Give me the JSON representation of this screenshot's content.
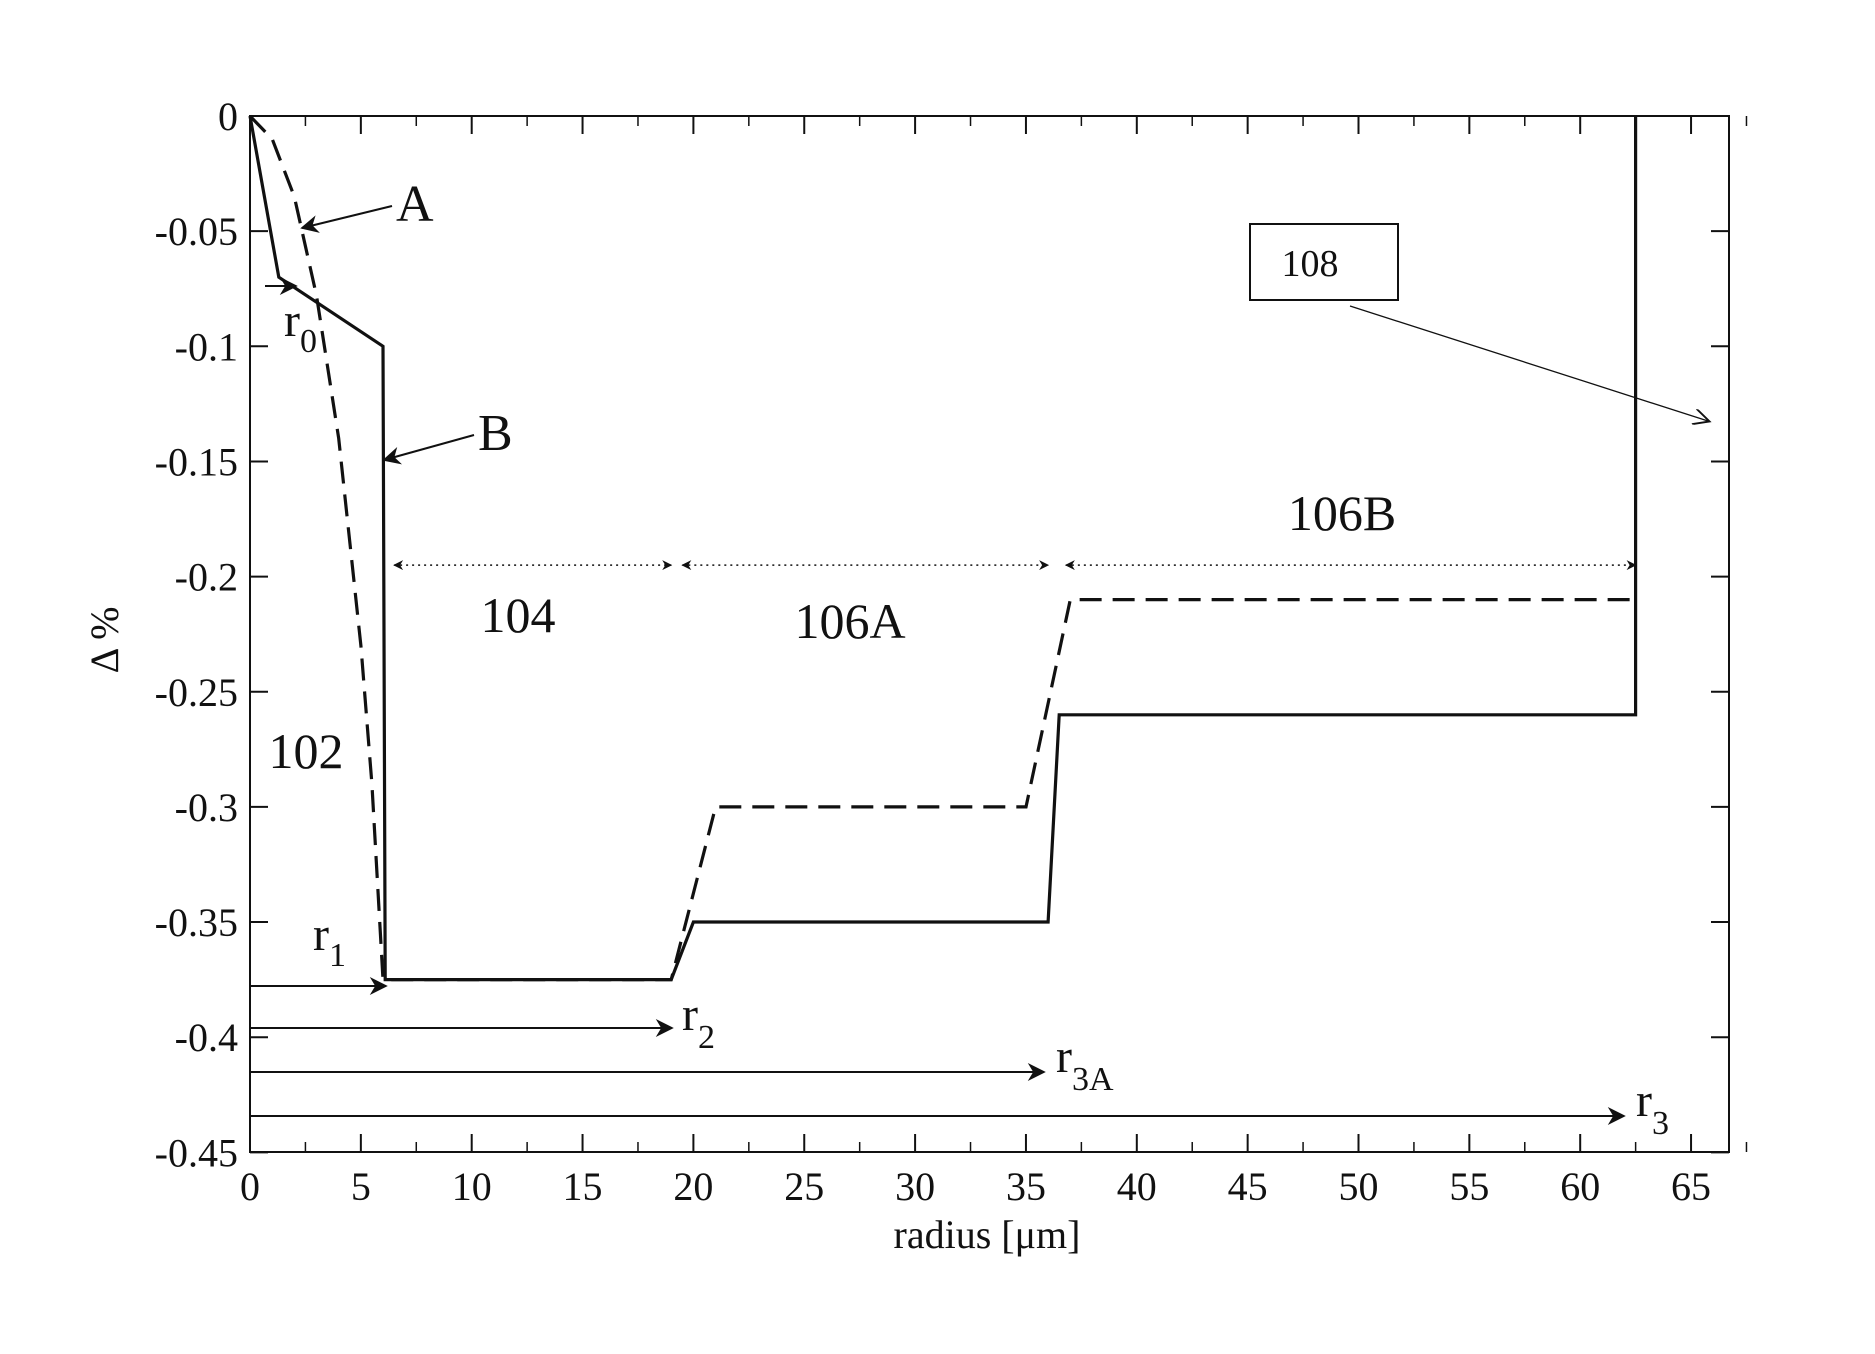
{
  "chart_data": {
    "type": "line",
    "xlabel": "radius [μm]",
    "ylabel": "Δ %",
    "xlim": [
      0,
      68
    ],
    "ylim": [
      -0.45,
      0
    ],
    "xticks": [
      "0",
      "5",
      "10",
      "15",
      "20",
      "25",
      "30",
      "35",
      "40",
      "45",
      "50",
      "55",
      "60",
      "65"
    ],
    "yticks": [
      "0",
      "-0.05",
      "-0.1",
      "-0.15",
      "-0.2",
      "-0.25",
      "-0.3",
      "-0.35",
      "-0.4",
      "-0.45"
    ],
    "series": [
      {
        "name": "A",
        "style": "dashed",
        "x": [
          0,
          1,
          2,
          3,
          4,
          5,
          5.5,
          6,
          19,
          21,
          35,
          37,
          62.5
        ],
        "y": [
          0,
          -0.01,
          -0.035,
          -0.078,
          -0.14,
          -0.23,
          -0.29,
          -0.375,
          -0.375,
          -0.3,
          -0.3,
          -0.21,
          -0.21
        ]
      },
      {
        "name": "B",
        "style": "solid",
        "x": [
          0,
          1.3,
          6,
          6,
          6.1,
          19,
          20,
          36,
          36.5,
          62.5,
          62.5
        ],
        "y": [
          0,
          -0.07,
          -0.1,
          -0.1,
          -0.375,
          -0.375,
          -0.35,
          -0.35,
          -0.26,
          -0.26,
          0
        ]
      }
    ],
    "annotations": {
      "label_a": "A",
      "label_b": "B",
      "r0": "r",
      "r0_sub": "0",
      "r1": "r",
      "r1_sub": "1",
      "r2": "r",
      "r2_sub": "2",
      "r3a": "r",
      "r3a_sub": "3A",
      "r3": "r",
      "r3_sub": "3",
      "region_102": "102",
      "region_104": "104",
      "region_106a": "106A",
      "region_106b": "106B",
      "box_108": "108"
    },
    "grid": false,
    "legend": "none"
  }
}
